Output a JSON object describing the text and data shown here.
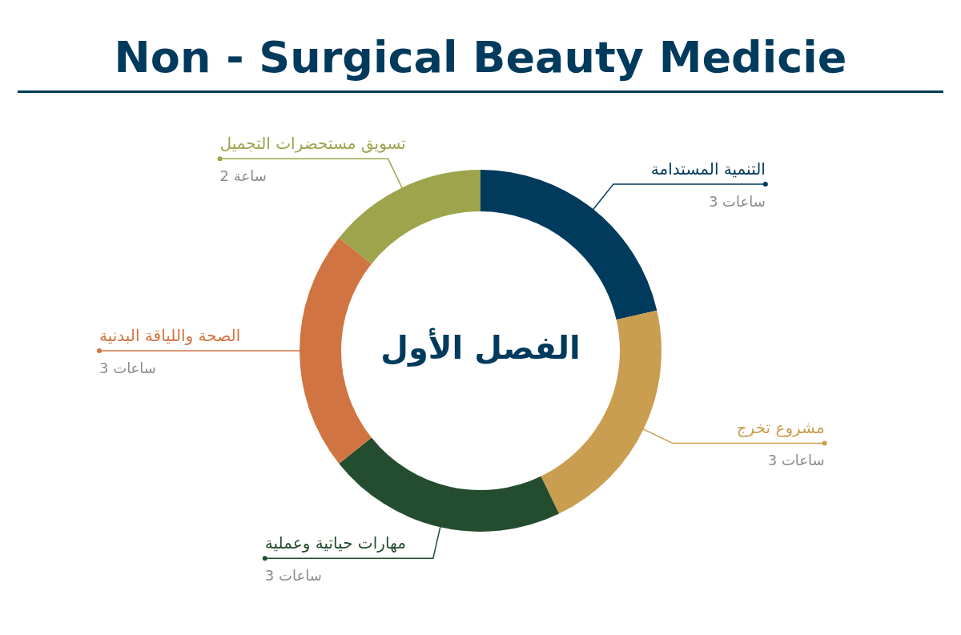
{
  "chart_data": {
    "type": "donut",
    "title": "Non - Surgical Beauty Medicie",
    "categories": [
      "التنمية المستدامة",
      "مشروع تخرج",
      "مهارات حياتية وعملية",
      "الصحة واللياقة البدنية",
      "تسويق مستحضرات التجميل"
    ],
    "values": [
      3,
      3,
      3,
      3,
      2
    ],
    "colors": [
      "#003a5c",
      "#c99e50",
      "#244c2e",
      "#d07542",
      "#9da44b"
    ],
    "value_labels": [
      "3 ساعات",
      "3 ساعات",
      "3 ساعات",
      "3 ساعات",
      "2 ساعة"
    ],
    "annotations": [
      "الفصل الأول"
    ]
  }
}
